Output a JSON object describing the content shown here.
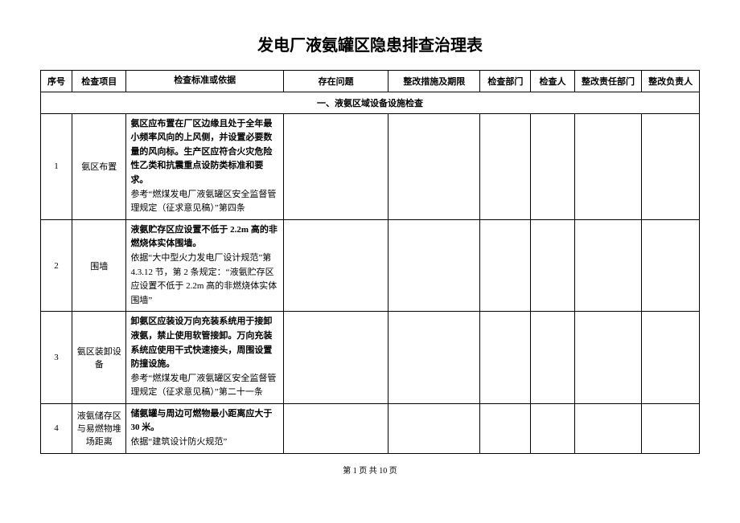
{
  "title": "发电厂液氨罐区隐患排查治理表",
  "headers": {
    "seq": "序号",
    "item": "检查项目",
    "standard": "检查标准或依据",
    "issue": "存在问题",
    "measure": "整改措施及期限",
    "dept": "检查部门",
    "person": "检查人",
    "respdept": "整改责任部门",
    "respperson": "整改负责人"
  },
  "sectionHeader": "一、液氨区域设备设施检查",
  "rows": [
    {
      "seq": "1",
      "item": "氨区布置",
      "std_bold": "氨区应布置在厂区边缘且处于全年最小频率风向的上风侧，并设置必要数量的风向标。生产区应符合火灾危险性乙类和抗震重点设防类标准和要求。",
      "std_ref": "参考“燃煤发电厂液氨罐区安全监督管理规定（征求意见稿）”第四条"
    },
    {
      "seq": "2",
      "item": "围墙",
      "std_bold": "液氨贮存区应设置不低于 2.2m 高的非燃烧体实体围墙。",
      "std_ref": "依据“大中型火力发电厂设计规范”第 4.3.12 节，第 2 条规定：“液氨贮存区应设置不低于 2.2m 高的非燃烧体实体围墙”"
    },
    {
      "seq": "3",
      "item": "氨区装卸设备",
      "std_bold": "卸氨区应装设万向充装系统用于接卸液氨，禁止使用软管接卸。万向充装系统应使用干式快速接头，周围设置防撞设施。",
      "std_ref": "参考“燃煤发电厂液氨罐区安全监督管理规定（征求意见稿）”第二十一条"
    },
    {
      "seq": "4",
      "item": "液氨储存区与易燃物堆场距离",
      "std_bold": "储氨罐与周边可燃物最小距离应大于 30 米。",
      "std_ref": "依据“建筑设计防火规范”"
    }
  ],
  "footer": "第 1 页 共 10 页"
}
